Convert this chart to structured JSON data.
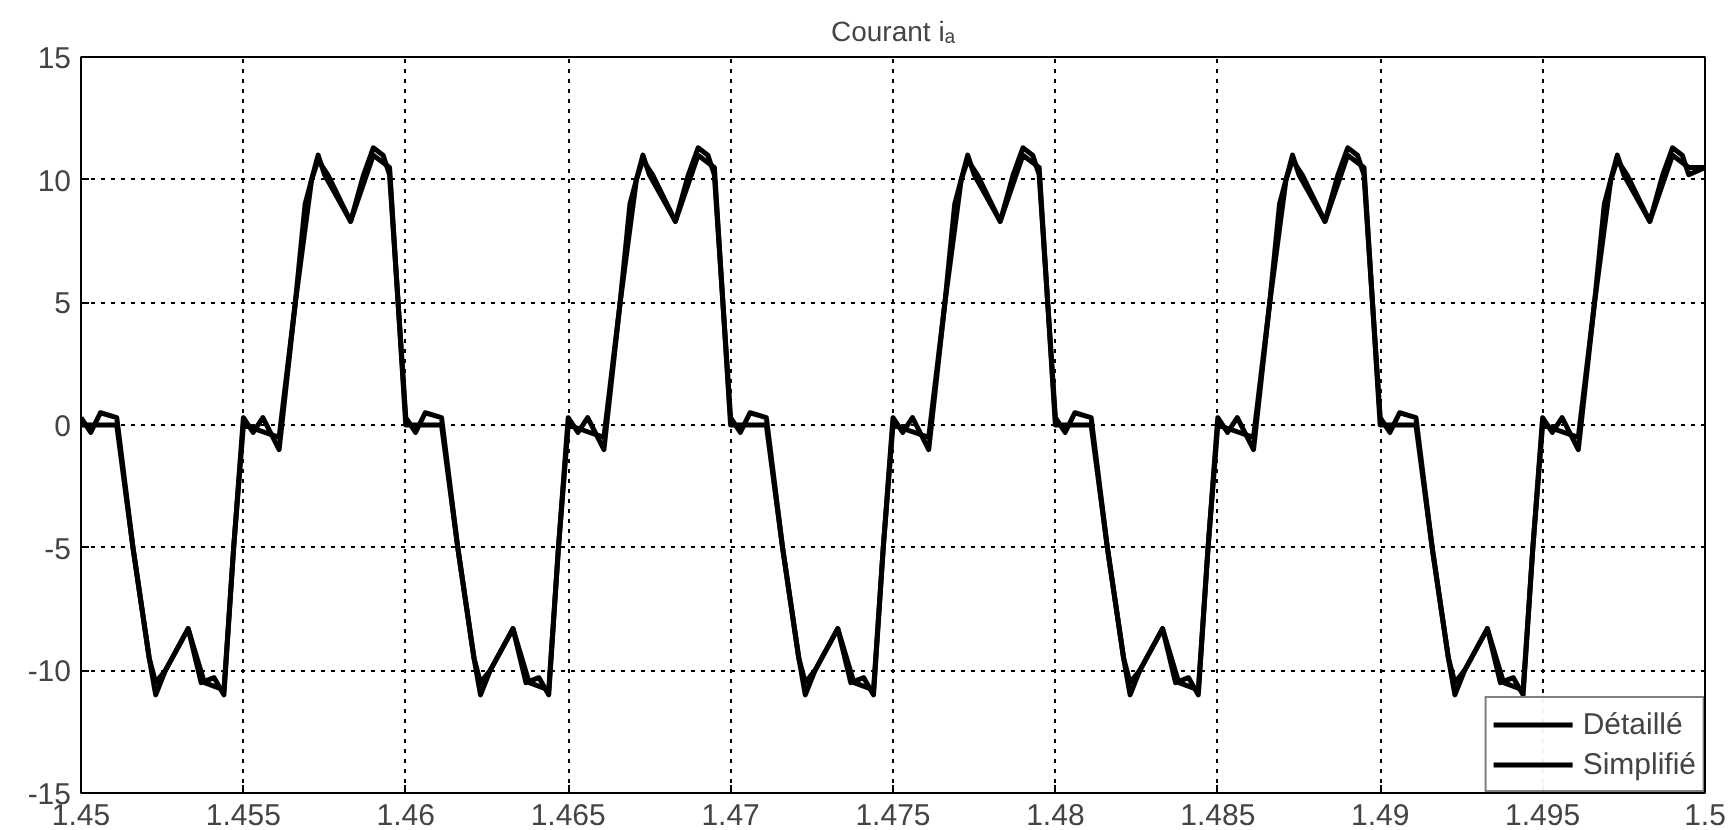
{
  "chart_data": {
    "type": "line",
    "title": "Courant iₐ",
    "xlim": [
      1.45,
      1.5
    ],
    "xticks": [
      1.45,
      1.455,
      1.46,
      1.465,
      1.47,
      1.475,
      1.48,
      1.485,
      1.49,
      1.495,
      1.5
    ],
    "ylim": [
      -15,
      15
    ],
    "yticks": [
      -15,
      -10,
      -5,
      0,
      5,
      10,
      15
    ],
    "grid": true,
    "legend": "bottom right",
    "line_style": "solid",
    "marker": "none",
    "series": [
      {
        "name": "Détaillé",
        "color": "#000000",
        "x": [
          1.45,
          1.4503,
          1.4506,
          1.4511,
          1.4516,
          1.4521,
          1.4523,
          1.4526,
          1.4533,
          1.4537,
          1.4541,
          1.4544,
          1.4547,
          1.455,
          1.4553,
          1.4556,
          1.4561,
          1.4566,
          1.4569,
          1.4573,
          1.4575,
          1.4583,
          1.4587,
          1.459,
          1.4593,
          1.4595,
          1.46,
          1.4603,
          1.4606,
          1.4611,
          1.4616,
          1.4621,
          1.4623,
          1.4626,
          1.4633,
          1.4637,
          1.4641,
          1.4644,
          1.4647,
          1.465,
          1.4653,
          1.4656,
          1.4661,
          1.4666,
          1.4669,
          1.4673,
          1.4675,
          1.4683,
          1.4687,
          1.469,
          1.4693,
          1.4695,
          1.47,
          1.4703,
          1.4706,
          1.4711,
          1.4716,
          1.4721,
          1.4723,
          1.4726,
          1.4733,
          1.4737,
          1.4741,
          1.4744,
          1.4747,
          1.475,
          1.4753,
          1.4756,
          1.4761,
          1.4766,
          1.4769,
          1.4773,
          1.4775,
          1.4783,
          1.4787,
          1.479,
          1.4793,
          1.4795,
          1.48,
          1.4803,
          1.4806,
          1.4811,
          1.4816,
          1.4821,
          1.4823,
          1.4826,
          1.4833,
          1.4837,
          1.4841,
          1.4844,
          1.4847,
          1.485,
          1.4853,
          1.4856,
          1.4861,
          1.4866,
          1.4869,
          1.4873,
          1.4875,
          1.4883,
          1.4887,
          1.489,
          1.4893,
          1.4895,
          1.49,
          1.4903,
          1.4906,
          1.4911,
          1.4916,
          1.4921,
          1.4923,
          1.4926,
          1.4933,
          1.4937,
          1.4941,
          1.4944,
          1.4947,
          1.495,
          1.4953,
          1.4956,
          1.4961,
          1.4966,
          1.4969,
          1.4973,
          1.4975,
          1.4983,
          1.4987,
          1.499,
          1.4993,
          1.4995,
          1.5
        ],
        "values": [
          0.3,
          -0.3,
          0.5,
          0.3,
          -5,
          -9.5,
          -11,
          -10,
          -8.3,
          -10.5,
          -10.3,
          -11,
          -5,
          0.3,
          -0.3,
          0.3,
          -1,
          5,
          9,
          11,
          10.2,
          8.3,
          10.2,
          11.3,
          11,
          10.2,
          0.3,
          -0.3,
          0.5,
          0.3,
          -5,
          -9.5,
          -11,
          -10,
          -8.3,
          -10.5,
          -10.3,
          -11,
          -5,
          0.3,
          -0.3,
          0.3,
          -1,
          5,
          9,
          11,
          10.2,
          8.3,
          10.2,
          11.3,
          11,
          10.2,
          0.3,
          -0.3,
          0.5,
          0.3,
          -5,
          -9.5,
          -11,
          -10,
          -8.3,
          -10.5,
          -10.3,
          -11,
          -5,
          0.3,
          -0.3,
          0.3,
          -1,
          5,
          9,
          11,
          10.2,
          8.3,
          10.2,
          11.3,
          11,
          10.2,
          0.3,
          -0.3,
          0.5,
          0.3,
          -5,
          -9.5,
          -11,
          -10,
          -8.3,
          -10.5,
          -10.3,
          -11,
          -5,
          0.3,
          -0.3,
          0.3,
          -1,
          5,
          9,
          11,
          10.2,
          8.3,
          10.2,
          11.3,
          11,
          10.2,
          0.3,
          -0.3,
          0.5,
          0.3,
          -5,
          -9.5,
          -11,
          -10,
          -8.3,
          -10.5,
          -10.3,
          -11,
          -5,
          0.3,
          -0.3,
          0.3,
          -1,
          5,
          9,
          11,
          10.2,
          8.3,
          10.2,
          11.3,
          11,
          10.2,
          10.5
        ]
      },
      {
        "name": "Simplifié",
        "color": "#000000",
        "x": [
          1.45,
          1.4511,
          1.4516,
          1.4521,
          1.4523,
          1.4526,
          1.4533,
          1.4538,
          1.4544,
          1.4547,
          1.455,
          1.4561,
          1.4566,
          1.4571,
          1.4573,
          1.4576,
          1.4583,
          1.459,
          1.4595,
          1.46,
          1.4611,
          1.4616,
          1.4621,
          1.4623,
          1.4626,
          1.4633,
          1.4638,
          1.4644,
          1.4647,
          1.465,
          1.4661,
          1.4666,
          1.4671,
          1.4673,
          1.4676,
          1.4683,
          1.469,
          1.4695,
          1.47,
          1.4711,
          1.4716,
          1.4721,
          1.4723,
          1.4726,
          1.4733,
          1.4738,
          1.4744,
          1.4747,
          1.475,
          1.4761,
          1.4766,
          1.4771,
          1.4773,
          1.4776,
          1.4783,
          1.479,
          1.4795,
          1.48,
          1.4811,
          1.4816,
          1.4821,
          1.4823,
          1.4826,
          1.4833,
          1.4838,
          1.4844,
          1.4847,
          1.485,
          1.4861,
          1.4866,
          1.4871,
          1.4873,
          1.4876,
          1.4883,
          1.489,
          1.4895,
          1.49,
          1.4911,
          1.4916,
          1.4921,
          1.4923,
          1.4926,
          1.4933,
          1.4938,
          1.4944,
          1.4947,
          1.495,
          1.4961,
          1.4966,
          1.4971,
          1.4973,
          1.4976,
          1.4983,
          1.499,
          1.4995,
          1.5
        ],
        "values": [
          0,
          0,
          -5,
          -9.5,
          -10.5,
          -10,
          -8.3,
          -10.5,
          -10.8,
          -5,
          0,
          -0.5,
          5,
          10,
          10.8,
          10.2,
          8.3,
          11,
          10.5,
          0,
          0,
          -5,
          -9.5,
          -10.5,
          -10,
          -8.3,
          -10.5,
          -10.8,
          -5,
          0,
          -0.5,
          5,
          10,
          10.8,
          10.2,
          8.3,
          11,
          10.5,
          0,
          0,
          -5,
          -9.5,
          -10.5,
          -10,
          -8.3,
          -10.5,
          -10.8,
          -5,
          0,
          -0.5,
          5,
          10,
          10.8,
          10.2,
          8.3,
          11,
          10.5,
          0,
          0,
          -5,
          -9.5,
          -10.5,
          -10,
          -8.3,
          -10.5,
          -10.8,
          -5,
          0,
          -0.5,
          5,
          10,
          10.8,
          10.2,
          8.3,
          11,
          10.5,
          0,
          0,
          -5,
          -9.5,
          -10.5,
          -10,
          -8.3,
          -10.5,
          -10.8,
          -5,
          0,
          -0.5,
          5,
          10,
          10.8,
          10.2,
          8.3,
          11,
          10.5,
          10.5
        ]
      }
    ]
  }
}
